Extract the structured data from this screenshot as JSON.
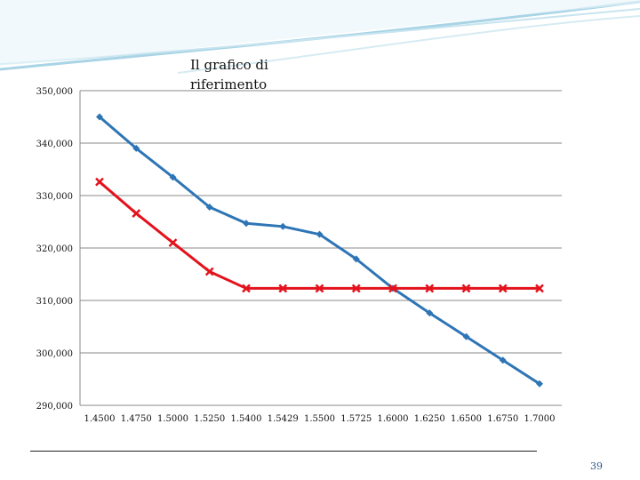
{
  "slide": {
    "title_line1": "Il grafico di",
    "title_line2": "riferimento",
    "page_number": "39"
  },
  "colors": {
    "series_blue": "#2e75b6",
    "series_red": "#e3121c",
    "grid": "#888888",
    "header_swoosh": "#a8d4e6"
  },
  "chart_data": {
    "type": "line",
    "title": "Il grafico di riferimento",
    "xlabel": "",
    "ylabel": "",
    "ylim": [
      290000,
      350000
    ],
    "y_ticks": [
      "290,000",
      "300,000",
      "310,000",
      "320,000",
      "330,000",
      "340,000",
      "350,000"
    ],
    "categories": [
      "1.4500",
      "1.4750",
      "1.5000",
      "1.5250",
      "1.5400",
      "1.5429",
      "1.5500",
      "1.5725",
      "1.6000",
      "1.6250",
      "1.6500",
      "1.6750",
      "1.7000"
    ],
    "grid": true,
    "legend": "none",
    "series": [
      {
        "color": "#2e75b6",
        "marker": "diamond",
        "values": [
          345000,
          339000,
          333500,
          327800,
          324700,
          324100,
          322600,
          317900,
          312300,
          307600,
          303100,
          298600,
          294100
        ]
      },
      {
        "color": "#e3121c",
        "marker": "x",
        "values": [
          332600,
          326600,
          321000,
          315500,
          312300,
          312300,
          312300,
          312300,
          312300,
          312300,
          312300,
          312300,
          312300
        ]
      }
    ]
  }
}
